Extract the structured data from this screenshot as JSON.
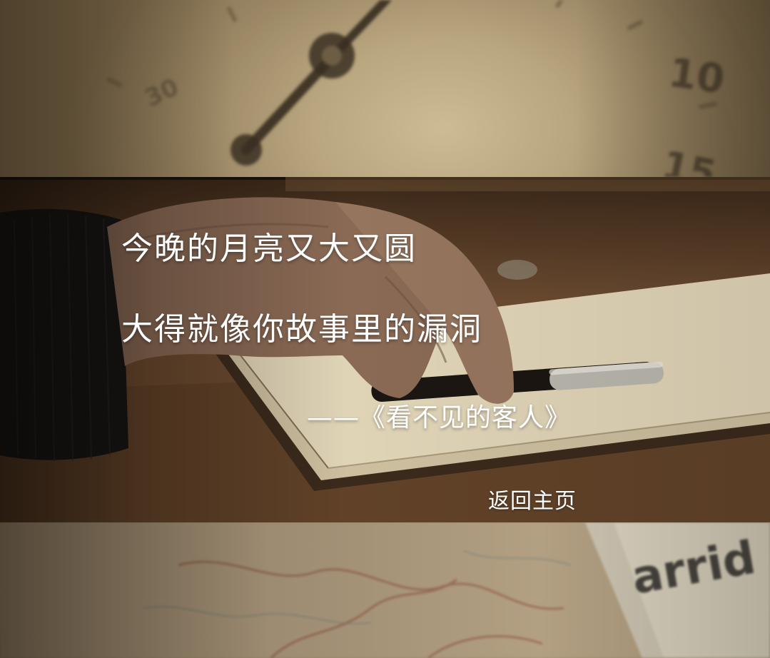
{
  "poem": {
    "line_1": "今晚的月亮又大又圆",
    "line_2": "大得就像你故事里的漏洞"
  },
  "attribution": {
    "text": "——《看不见的客人》"
  },
  "nav": {
    "home_label": "返回主页"
  },
  "background": {
    "clock_numbers": [
      "10",
      "15",
      "30"
    ],
    "map_text": "arrid"
  }
}
